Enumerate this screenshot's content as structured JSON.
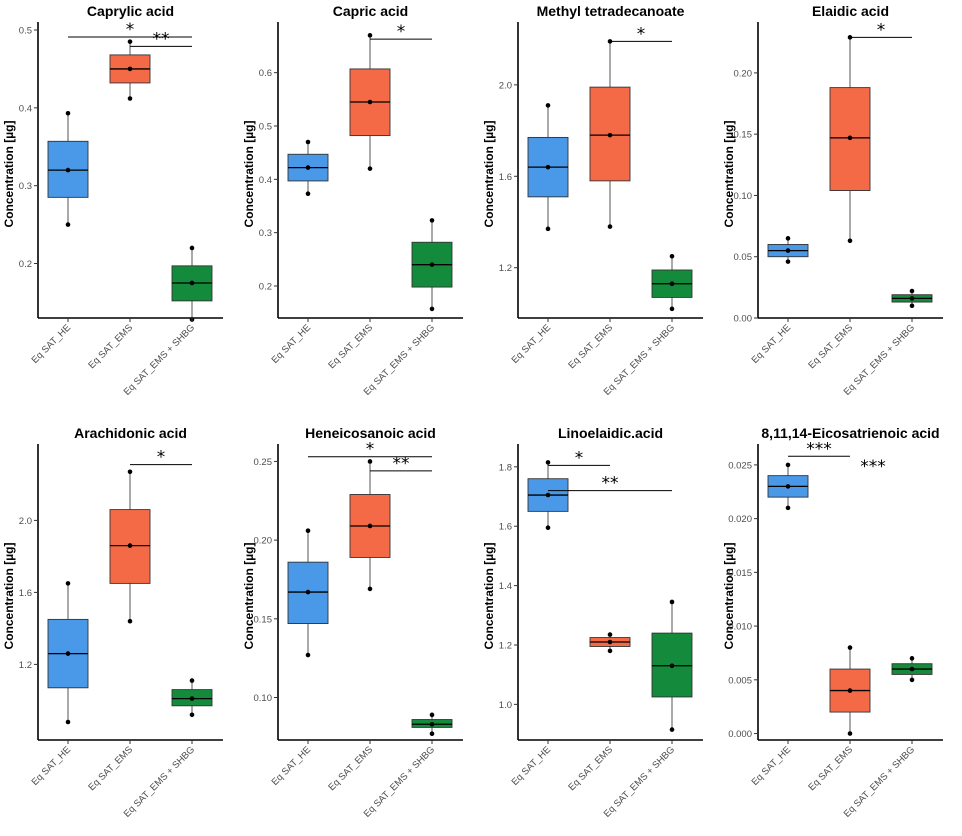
{
  "colors": {
    "HE": "#4a98e8",
    "EMS": "#f46a47",
    "SHBG": "#148a3c"
  },
  "chart_data": [
    {
      "type": "boxplot",
      "title": "Caprylic acid",
      "ylabel": "Concentration [µg]",
      "ylim": [
        0.13,
        0.5
      ],
      "yticks": [
        "0.2",
        "0.3",
        "0.4",
        "0.5"
      ],
      "yticks_values": [
        0.2,
        0.3,
        0.4,
        0.5
      ],
      "categories": [
        "Eq SAT_HE",
        "Eq SAT_EMS",
        "Eq SAT_EMS + SHBG"
      ],
      "boxes": [
        {
          "group": "HE",
          "q1": 0.285,
          "median": 0.32,
          "q3": 0.357,
          "low": 0.25,
          "high": 0.393,
          "mean": 0.32
        },
        {
          "group": "EMS",
          "q1": 0.432,
          "median": 0.45,
          "q3": 0.468,
          "low": 0.412,
          "high": 0.485,
          "mean": 0.45
        },
        {
          "group": "SHBG",
          "q1": 0.152,
          "median": 0.175,
          "q3": 0.197,
          "low": 0.128,
          "high": 0.22,
          "mean": 0.175
        }
      ],
      "significance": [
        {
          "from": 0,
          "to": 2,
          "label": "*",
          "level": 0.491
        },
        {
          "from": 1,
          "to": 2,
          "label": "**",
          "level": 0.479
        }
      ]
    },
    {
      "type": "boxplot",
      "title": "Capric acid",
      "ylabel": "Concentration [µg]",
      "ylim": [
        0.14,
        0.68
      ],
      "yticks": [
        "0.2",
        "0.3",
        "0.4",
        "0.5",
        "0.6"
      ],
      "yticks_values": [
        0.2,
        0.3,
        0.4,
        0.5,
        0.6
      ],
      "categories": [
        "Eq SAT_HE",
        "Eq SAT_EMS",
        "Eq SAT_EMS + SHBG"
      ],
      "boxes": [
        {
          "group": "HE",
          "q1": 0.397,
          "median": 0.422,
          "q3": 0.447,
          "low": 0.373,
          "high": 0.47,
          "mean": 0.422
        },
        {
          "group": "EMS",
          "q1": 0.482,
          "median": 0.545,
          "q3": 0.607,
          "low": 0.42,
          "high": 0.67,
          "mean": 0.545
        },
        {
          "group": "SHBG",
          "q1": 0.198,
          "median": 0.24,
          "q3": 0.282,
          "low": 0.157,
          "high": 0.323,
          "mean": 0.24
        }
      ],
      "significance": [
        {
          "from": 1,
          "to": 2,
          "label": "*",
          "level": 0.663
        }
      ]
    },
    {
      "type": "boxplot",
      "title": "Methyl tetradecanoate",
      "ylabel": "Concentration [µg]",
      "ylim": [
        0.98,
        2.24
      ],
      "yticks": [
        "1.2",
        "1.6",
        "2.0"
      ],
      "yticks_values": [
        1.2,
        1.6,
        2.0
      ],
      "categories": [
        "Eq SAT_HE",
        "Eq SAT_EMS",
        "Eq SAT_EMS + SHBG"
      ],
      "boxes": [
        {
          "group": "HE",
          "q1": 1.51,
          "median": 1.64,
          "q3": 1.77,
          "low": 1.37,
          "high": 1.91,
          "mean": 1.64
        },
        {
          "group": "EMS",
          "q1": 1.58,
          "median": 1.78,
          "q3": 1.99,
          "low": 1.38,
          "high": 2.19,
          "mean": 1.78
        },
        {
          "group": "SHBG",
          "q1": 1.07,
          "median": 1.13,
          "q3": 1.19,
          "low": 1.02,
          "high": 1.25,
          "mean": 1.13
        }
      ],
      "significance": [
        {
          "from": 1,
          "to": 2,
          "label": "*",
          "level": 2.19
        }
      ]
    },
    {
      "type": "boxplot",
      "title": "Elaidic acid",
      "ylabel": "Concentration [µg]",
      "ylim": [
        0.0,
        0.235
      ],
      "yticks": [
        "0.00",
        "0.05",
        "0.10",
        "0.15",
        "0.20"
      ],
      "yticks_values": [
        0.0,
        0.05,
        0.1,
        0.15,
        0.2
      ],
      "categories": [
        "Eq SAT_HE",
        "Eq SAT_EMS",
        "Eq SAT_EMS + SHBG"
      ],
      "boxes": [
        {
          "group": "HE",
          "q1": 0.05,
          "median": 0.055,
          "q3": 0.06,
          "low": 0.046,
          "high": 0.065,
          "mean": 0.055
        },
        {
          "group": "EMS",
          "q1": 0.104,
          "median": 0.147,
          "q3": 0.188,
          "low": 0.063,
          "high": 0.229,
          "mean": 0.147
        },
        {
          "group": "SHBG",
          "q1": 0.013,
          "median": 0.016,
          "q3": 0.019,
          "low": 0.01,
          "high": 0.022,
          "mean": 0.016
        }
      ],
      "significance": [
        {
          "from": 1,
          "to": 2,
          "label": "*",
          "level": 0.229
        }
      ]
    },
    {
      "type": "boxplot",
      "title": "Arachidonic acid",
      "ylabel": "Concentration [µg]",
      "ylim": [
        0.78,
        2.38
      ],
      "yticks": [
        "1.2",
        "1.6",
        "2.0"
      ],
      "yticks_values": [
        1.2,
        1.6,
        2.0
      ],
      "categories": [
        "Eq SAT_HE",
        "Eq SAT_EMS",
        "Eq SAT_EMS + SHBG"
      ],
      "boxes": [
        {
          "group": "HE",
          "q1": 1.07,
          "median": 1.26,
          "q3": 1.45,
          "low": 0.88,
          "high": 1.65,
          "mean": 1.26
        },
        {
          "group": "EMS",
          "q1": 1.65,
          "median": 1.86,
          "q3": 2.06,
          "low": 1.44,
          "high": 2.27,
          "mean": 1.86
        },
        {
          "group": "SHBG",
          "q1": 0.97,
          "median": 1.01,
          "q3": 1.06,
          "low": 0.92,
          "high": 1.11,
          "mean": 1.01
        }
      ],
      "significance": [
        {
          "from": 1,
          "to": 2,
          "label": "*",
          "level": 2.31
        }
      ]
    },
    {
      "type": "boxplot",
      "title": "Heneicosanoic acid",
      "ylabel": "Concentration [µg]",
      "ylim": [
        0.073,
        0.256
      ],
      "yticks": [
        "0.10",
        "0.15",
        "0.20",
        "0.25"
      ],
      "yticks_values": [
        0.1,
        0.15,
        0.2,
        0.25
      ],
      "categories": [
        "Eq SAT_HE",
        "Eq SAT_EMS",
        "Eq SAT_EMS + SHBG"
      ],
      "boxes": [
        {
          "group": "HE",
          "q1": 0.147,
          "median": 0.167,
          "q3": 0.186,
          "low": 0.127,
          "high": 0.206,
          "mean": 0.167
        },
        {
          "group": "EMS",
          "q1": 0.189,
          "median": 0.209,
          "q3": 0.229,
          "low": 0.169,
          "high": 0.25,
          "mean": 0.209
        },
        {
          "group": "SHBG",
          "q1": 0.081,
          "median": 0.083,
          "q3": 0.086,
          "low": 0.077,
          "high": 0.089,
          "mean": 0.083
        }
      ],
      "significance": [
        {
          "from": 0,
          "to": 2,
          "label": "*",
          "level": 0.253
        },
        {
          "from": 1,
          "to": 2,
          "label": "**",
          "level": 0.244
        }
      ]
    },
    {
      "type": "boxplot",
      "title": "Linoelaidic.acid",
      "ylabel": "Concentration [µg]",
      "ylim": [
        0.88,
        1.85
      ],
      "yticks": [
        "1.0",
        "1.2",
        "1.4",
        "1.6",
        "1.8"
      ],
      "yticks_values": [
        1.0,
        1.2,
        1.4,
        1.6,
        1.8
      ],
      "categories": [
        "Eq SAT_HE",
        "Eq SAT_EMS",
        "Eq SAT_EMS + SHBG"
      ],
      "boxes": [
        {
          "group": "HE",
          "q1": 1.65,
          "median": 1.705,
          "q3": 1.76,
          "low": 1.595,
          "high": 1.815,
          "mean": 1.705
        },
        {
          "group": "EMS",
          "q1": 1.195,
          "median": 1.21,
          "q3": 1.225,
          "low": 1.18,
          "high": 1.235,
          "mean": 1.21
        },
        {
          "group": "SHBG",
          "q1": 1.025,
          "median": 1.13,
          "q3": 1.24,
          "low": 0.915,
          "high": 1.345,
          "mean": 1.13
        }
      ],
      "significance": [
        {
          "from": 0,
          "to": 1,
          "label": "*",
          "level": 1.805
        },
        {
          "from": 0,
          "to": 2,
          "label": "**",
          "level": 1.72
        }
      ]
    },
    {
      "type": "boxplot",
      "title": "8,11,14-Eicosatrienoic acid",
      "ylabel": "Concentration [µg]",
      "ylim": [
        -0.0006,
        0.0262
      ],
      "yticks": [
        "0.000",
        "0.005",
        "0.010",
        "0.015",
        "0.020",
        "0.025"
      ],
      "yticks_values": [
        0.0,
        0.005,
        0.01,
        0.015,
        0.02,
        0.025
      ],
      "categories": [
        "Eq SAT_HE",
        "Eq SAT_EMS",
        "Eq SAT_EMS + SHBG"
      ],
      "boxes": [
        {
          "group": "HE",
          "q1": 0.022,
          "median": 0.023,
          "q3": 0.024,
          "low": 0.021,
          "high": 0.025,
          "mean": 0.023
        },
        {
          "group": "EMS",
          "q1": 0.002,
          "median": 0.004,
          "q3": 0.006,
          "low": 0.0,
          "high": 0.008,
          "mean": 0.004
        },
        {
          "group": "SHBG",
          "q1": 0.0055,
          "median": 0.006,
          "q3": 0.0065,
          "low": 0.005,
          "high": 0.007,
          "mean": 0.006
        }
      ],
      "significance": [
        {
          "from": 0,
          "to": 1,
          "label": "***",
          "level": 0.0258
        },
        {
          "from": 1,
          "to": 2,
          "label": "***",
          "level": null
        }
      ]
    }
  ]
}
